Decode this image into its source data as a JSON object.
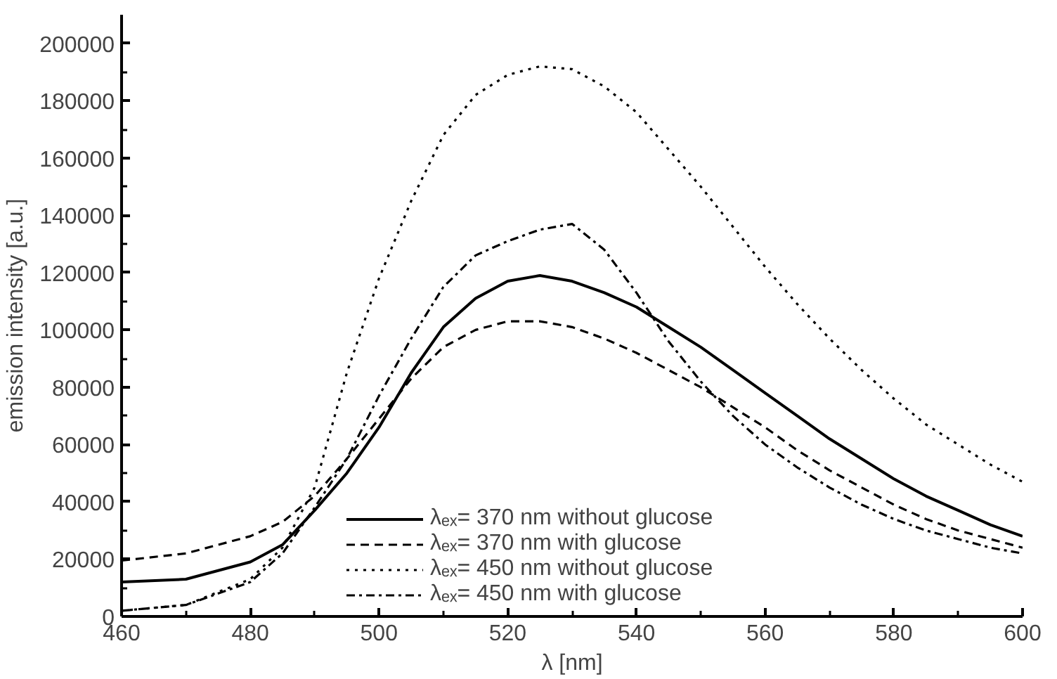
{
  "chart_data": {
    "type": "line",
    "xlabel": "λ [nm]",
    "ylabel": "emission intensity [a.u.]",
    "x": [
      460,
      470,
      480,
      485,
      490,
      495,
      500,
      505,
      510,
      515,
      520,
      525,
      530,
      535,
      540,
      545,
      550,
      555,
      560,
      565,
      570,
      575,
      580,
      585,
      590,
      595,
      600
    ],
    "xlim": [
      460,
      600
    ],
    "xticks": [
      460,
      480,
      500,
      520,
      540,
      560,
      580,
      600
    ],
    "ylim": [
      0,
      210000
    ],
    "yticks": [
      0,
      20000,
      40000,
      60000,
      80000,
      100000,
      120000,
      140000,
      160000,
      180000,
      200000
    ],
    "grid": false,
    "legend": "bottom",
    "marker": "none",
    "series": [
      {
        "name": "λₑₓ= 370 nm without glucose",
        "color": "#000000",
        "line_style": "solid",
        "values": [
          12000,
          13000,
          19000,
          25000,
          37000,
          50000,
          66000,
          85000,
          101000,
          111000,
          117000,
          119000,
          117000,
          113000,
          108000,
          101000,
          94000,
          86000,
          78000,
          70000,
          62000,
          55000,
          48000,
          42000,
          37000,
          32000,
          28000
        ]
      },
      {
        "name": "λₑₓ= 370 nm with glucose",
        "color": "#000000",
        "line_style": "dashed",
        "values": [
          19500,
          22000,
          28000,
          33000,
          42000,
          55000,
          69000,
          83000,
          94000,
          100000,
          103000,
          103000,
          101000,
          97000,
          92000,
          86000,
          80000,
          73000,
          66000,
          58000,
          51000,
          45000,
          39000,
          34000,
          30000,
          27000,
          24000
        ]
      },
      {
        "name": "λₑₓ= 450 nm without glucose",
        "color": "#000000",
        "line_style": "dotted",
        "values": [
          2000,
          4000,
          13000,
          24000,
          45000,
          85000,
          118000,
          145000,
          168000,
          182000,
          189000,
          192000,
          191000,
          185000,
          176000,
          163000,
          150000,
          136000,
          122000,
          109000,
          97000,
          86000,
          76000,
          67000,
          60000,
          53000,
          47000
        ]
      },
      {
        "name": "λₑₓ= 450 nm with glucose",
        "color": "#000000",
        "line_style": "dashdot",
        "values": [
          2000,
          4000,
          12000,
          22000,
          38000,
          55000,
          77000,
          97000,
          115000,
          126000,
          131000,
          135000,
          137000,
          128000,
          113000,
          96000,
          82000,
          70000,
          60000,
          52000,
          45000,
          39000,
          34000,
          30000,
          27000,
          24000,
          22000
        ]
      }
    ]
  }
}
